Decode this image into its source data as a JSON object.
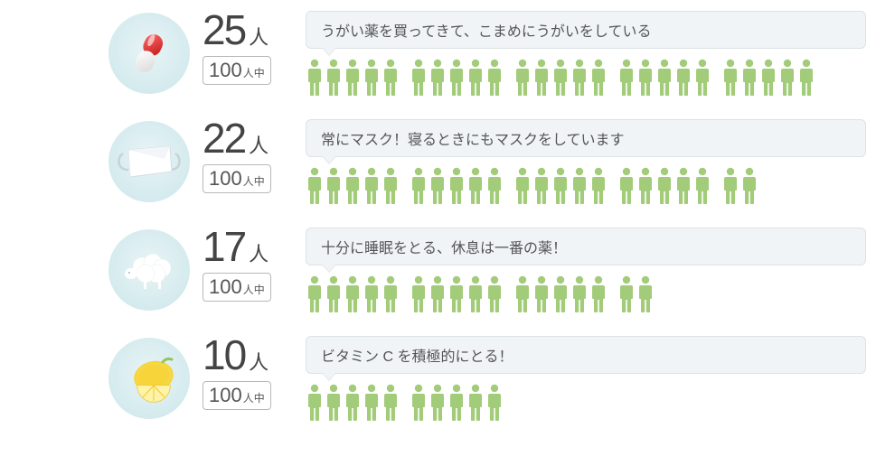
{
  "type": "infographic",
  "people_icon_color": "#a3cc7a",
  "icon_circle_bg": "#d7ecef",
  "bubble_bg": "#f0f4f6",
  "bubble_border": "#dbe3e6",
  "text_color": "#555555",
  "denom_border": "#b8b8b8",
  "person_unit": "人",
  "denom_suffix": "人中",
  "rows": [
    {
      "icon": "pill",
      "count": "25",
      "denom": "100",
      "bubble": "うがい薬を買ってきて、こまめにうがいをしている",
      "groups": [
        5,
        5,
        5,
        5,
        5
      ]
    },
    {
      "icon": "mask",
      "count": "22",
      "denom": "100",
      "bubble": "常にマスク！寝るときにもマスクをしています",
      "groups": [
        5,
        5,
        5,
        5,
        2
      ]
    },
    {
      "icon": "sheep",
      "count": "17",
      "denom": "100",
      "bubble": "十分に睡眠をとる、休息は一番の薬！",
      "groups": [
        5,
        5,
        5,
        2
      ]
    },
    {
      "icon": "lemon",
      "count": "10",
      "denom": "100",
      "bubble": "ビタミン C を積極的にとる！",
      "groups": [
        5,
        5
      ]
    }
  ]
}
